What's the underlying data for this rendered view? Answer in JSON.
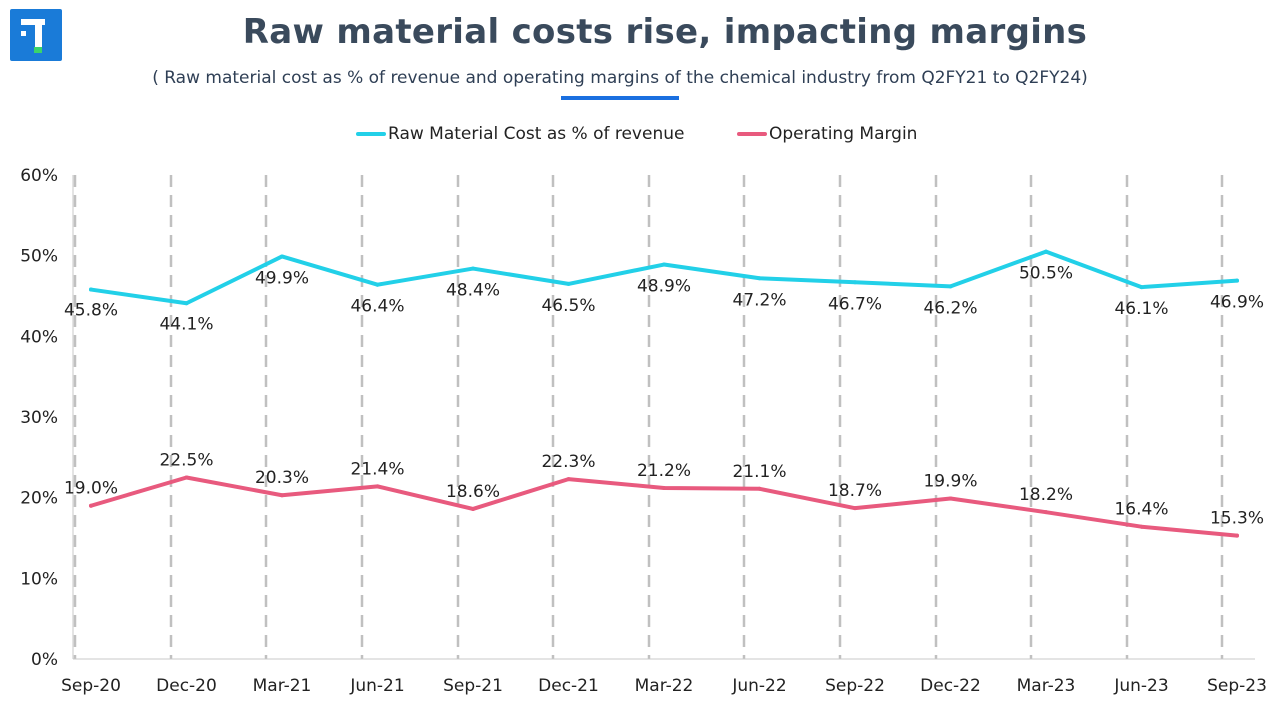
{
  "title": "Raw material costs rise, impacting margins",
  "subtitle": "( Raw material cost as % of revenue and operating margins of the chemical industry from Q2FY21 to Q2FY24)",
  "logo": {
    "icon": "brand-logo-icon",
    "color": "#1a7bd8"
  },
  "chart_data": {
    "type": "line",
    "categories": [
      "Sep-20",
      "Dec-20",
      "Mar-21",
      "Jun-21",
      "Sep-21",
      "Dec-21",
      "Mar-22",
      "Jun-22",
      "Sep-22",
      "Dec-22",
      "Mar-23",
      "Jun-23",
      "Sep-23"
    ],
    "series": [
      {
        "name": "Raw Material Cost as % of revenue",
        "color": "#22d0e8",
        "values": [
          45.8,
          44.1,
          49.9,
          46.4,
          48.4,
          46.5,
          48.9,
          47.2,
          46.7,
          46.2,
          50.5,
          46.1,
          46.9
        ],
        "labels": [
          "45.8%",
          "44.1%",
          "49.9%",
          "46.4%",
          "48.4%",
          "46.5%",
          "48.9%",
          "47.2%",
          "46.7%",
          "46.2%",
          "50.5%",
          "46.1%",
          "46.9%"
        ]
      },
      {
        "name": "Operating Margin",
        "color": "#e85a7e",
        "values": [
          19.0,
          22.5,
          20.3,
          21.4,
          18.6,
          22.3,
          21.2,
          21.1,
          18.7,
          19.9,
          18.2,
          16.4,
          15.3
        ],
        "labels": [
          "19.0%",
          "22.5%",
          "20.3%",
          "21.4%",
          "18.6%",
          "22.3%",
          "21.2%",
          "21.1%",
          "18.7%",
          "19.9%",
          "18.2%",
          "16.4%",
          "15.3%"
        ]
      }
    ],
    "ylim": [
      0,
      60
    ],
    "yticks": [
      0,
      10,
      20,
      30,
      40,
      50,
      60
    ],
    "ytick_labels": [
      "0%",
      "10%",
      "20%",
      "30%",
      "40%",
      "50%",
      "60%"
    ],
    "grid": "vertical dashed",
    "legend": "top-center"
  }
}
